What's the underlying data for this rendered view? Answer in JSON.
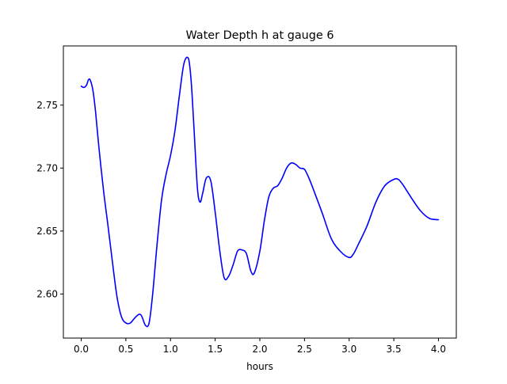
{
  "chart_data": {
    "type": "line",
    "title": "Water Depth h at gauge 6",
    "xlabel": "hours",
    "ylabel": "",
    "xlim": [
      -0.2,
      4.2
    ],
    "ylim": [
      2.565,
      2.797
    ],
    "x_ticks": [
      0.0,
      0.5,
      1.0,
      1.5,
      2.0,
      2.5,
      3.0,
      3.5,
      4.0
    ],
    "x_tick_labels": [
      "0.0",
      "0.5",
      "1.0",
      "1.5",
      "2.0",
      "2.5",
      "3.0",
      "3.5",
      "4.0"
    ],
    "y_ticks": [
      2.6,
      2.65,
      2.7,
      2.75
    ],
    "y_tick_labels": [
      "2.60",
      "2.65",
      "2.70",
      "2.75"
    ],
    "grid": false,
    "legend": "none",
    "series": [
      {
        "color": "#0000ff",
        "x": [
          0.0,
          0.03,
          0.06,
          0.08,
          0.1,
          0.13,
          0.16,
          0.2,
          0.25,
          0.3,
          0.35,
          0.4,
          0.45,
          0.5,
          0.55,
          0.6,
          0.65,
          0.68,
          0.72,
          0.76,
          0.8,
          0.85,
          0.9,
          0.95,
          1.0,
          1.05,
          1.1,
          1.15,
          1.2,
          1.23,
          1.26,
          1.3,
          1.33,
          1.36,
          1.4,
          1.45,
          1.5,
          1.55,
          1.6,
          1.65,
          1.7,
          1.75,
          1.8,
          1.85,
          1.9,
          1.94,
          2.0,
          2.05,
          2.1,
          2.15,
          2.2,
          2.25,
          2.3,
          2.35,
          2.4,
          2.45,
          2.5,
          2.55,
          2.6,
          2.7,
          2.8,
          2.9,
          3.0,
          3.05,
          3.1,
          3.2,
          3.3,
          3.4,
          3.5,
          3.55,
          3.6,
          3.7,
          3.8,
          3.9,
          4.0
        ],
        "y": [
          2.765,
          2.764,
          2.766,
          2.77,
          2.77,
          2.762,
          2.745,
          2.715,
          2.682,
          2.654,
          2.625,
          2.598,
          2.582,
          2.577,
          2.577,
          2.581,
          2.584,
          2.582,
          2.575,
          2.577,
          2.6,
          2.64,
          2.675,
          2.695,
          2.71,
          2.73,
          2.758,
          2.783,
          2.787,
          2.77,
          2.735,
          2.685,
          2.673,
          2.68,
          2.692,
          2.69,
          2.665,
          2.635,
          2.613,
          2.614,
          2.623,
          2.634,
          2.635,
          2.632,
          2.618,
          2.617,
          2.634,
          2.658,
          2.677,
          2.684,
          2.686,
          2.692,
          2.7,
          2.704,
          2.703,
          2.7,
          2.699,
          2.692,
          2.683,
          2.664,
          2.644,
          2.634,
          2.629,
          2.632,
          2.639,
          2.654,
          2.673,
          2.686,
          2.691,
          2.691,
          2.687,
          2.676,
          2.666,
          2.66,
          2.659
        ]
      }
    ]
  }
}
